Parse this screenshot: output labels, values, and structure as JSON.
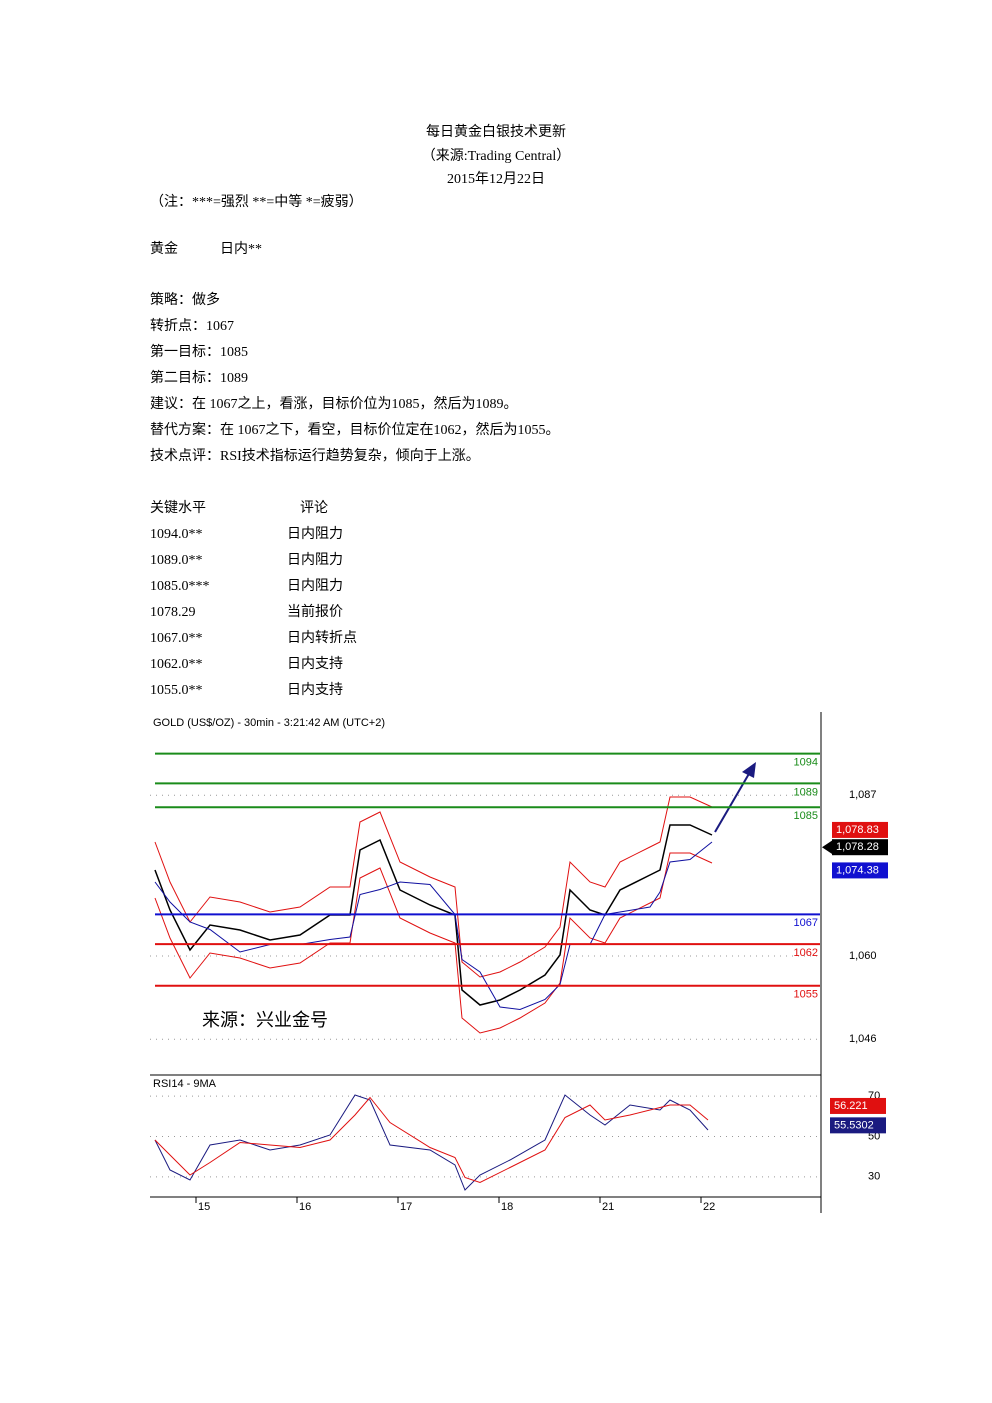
{
  "header": {
    "title": "每日黄金白银技术更新",
    "source": "（来源:Trading Central）",
    "date": "2015年12月22日",
    "note": "（注：***=强烈 **=中等 *=疲弱）"
  },
  "instrument": {
    "name": "黄金",
    "horizon": "日内**"
  },
  "strategy": [
    "策略：做多",
    "转折点：1067",
    "第一目标：1085",
    "第二目标：1089",
    "建议：在 1067之上，看涨，目标价位为1085，然后为1089。",
    "替代方案：在 1067之下，看空，目标价位定在1062，然后为1055。",
    "技术点评：RSI技术指标运行趋势复杂，倾向于上涨。"
  ],
  "table": {
    "header": [
      "关键水平",
      "评论"
    ],
    "rows": [
      [
        "1094.0**",
        "日内阻力"
      ],
      [
        "1089.0**",
        "日内阻力"
      ],
      [
        "1085.0***",
        "日内阻力"
      ],
      [
        "1078.29",
        "当前报价"
      ],
      [
        "1067.0**",
        "日内转折点"
      ],
      [
        "1062.0**",
        "日内支持"
      ],
      [
        "1055.0**",
        "日内支持"
      ]
    ]
  },
  "chart": {
    "title": "GOLD (US$/OZ) - 30min - 3:21:42 AM (UTC+2)",
    "watermark": "来源：兴业金号",
    "ylim": [
      1040,
      1101
    ],
    "yticks": [
      {
        "value": 1087,
        "label": "1,087"
      },
      {
        "value": 1060,
        "label": "1,060"
      },
      {
        "value": 1046,
        "label": "1,046"
      }
    ],
    "levels": [
      {
        "value": 1094,
        "label": "1094",
        "color": "#1a8c1a"
      },
      {
        "value": 1089,
        "label": "1089",
        "color": "#1a8c1a"
      },
      {
        "value": 1085,
        "label": "1085",
        "color": "#1a8c1a"
      },
      {
        "value": 1067,
        "label": "1067",
        "color": "#1010d0"
      },
      {
        "value": 1062,
        "label": "1062",
        "color": "#e01010"
      },
      {
        "value": 1055,
        "label": "1055",
        "color": "#e01010"
      }
    ],
    "price_flags": [
      {
        "value": 1078.83,
        "label": "1,078.83",
        "color": "#e01010"
      },
      {
        "value": 1078.28,
        "label": "1,078.28",
        "color": "#000000"
      },
      {
        "value": 1074.38,
        "label": "1,074.38",
        "color": "#1010d0"
      }
    ],
    "rsi": {
      "title": "RSI14 - 9MA",
      "ylim": [
        20,
        80
      ],
      "yticks": [
        70,
        50,
        30
      ],
      "flags": [
        {
          "value": 56.221,
          "label": "56.221",
          "color": "#e01010"
        },
        {
          "value": 55.5302,
          "label": "55.5302",
          "color": "#1a1a80"
        }
      ]
    },
    "categories": [
      "15",
      "16",
      "17",
      "18",
      "21",
      "22"
    ]
  }
}
